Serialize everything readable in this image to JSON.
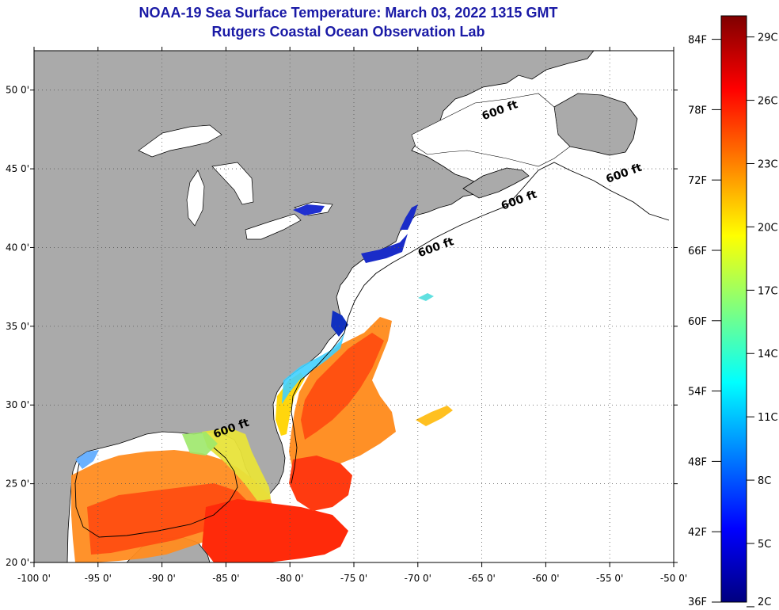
{
  "title": "NOAA-19 Sea Surface Temperature:  March 03, 2022 1315 GMT",
  "subtitle": "Rutgers Coastal Ocean Observation Lab",
  "map": {
    "lon_range": [
      -100,
      -50
    ],
    "lat_range": [
      20,
      52.5
    ],
    "x_ticks": [
      "-100 0'",
      "-95 0'",
      "-90 0'",
      "-85 0'",
      "-80 0'",
      "-75 0'",
      "-70 0'",
      "-65 0'",
      "-60 0'",
      "-55 0'",
      "-50 0'"
    ],
    "x_tick_values": [
      -100,
      -95,
      -90,
      -85,
      -80,
      -75,
      -70,
      -65,
      -60,
      -55,
      -50
    ],
    "y_ticks": [
      "20 0'",
      "25 0'",
      "30 0'",
      "35 0'",
      "40 0'",
      "45 0'",
      "50 0'"
    ],
    "y_tick_values": [
      20,
      25,
      30,
      35,
      40,
      45,
      50
    ],
    "grid": true,
    "land_color": "#aaaaaa",
    "no_data_color": "#ffffff",
    "depth_labels": [
      {
        "text": "600 ft",
        "lon": -63.5,
        "lat": 48.5
      },
      {
        "text": "600 ft",
        "lon": -53.8,
        "lat": 44.5
      },
      {
        "text": "600 ft",
        "lon": -62.0,
        "lat": 42.8
      },
      {
        "text": "600 ft",
        "lon": -68.5,
        "lat": 39.8
      },
      {
        "text": "600 ft",
        "lon": -84.5,
        "lat": 28.3
      }
    ]
  },
  "colorbar": {
    "min_f": 36,
    "max_f": 86,
    "f_labels": [
      "84F",
      "78F",
      "72F",
      "66F",
      "60F",
      "54F",
      "48F",
      "42F",
      "36F"
    ],
    "c_labels": [
      "29C",
      "26C",
      "23C",
      "20C",
      "17C",
      "14C",
      "11C",
      "8C",
      "5C",
      "2C"
    ],
    "colors": [
      "#00007f",
      "#0000ff",
      "#007fff",
      "#00ffff",
      "#7fff7f",
      "#ffff00",
      "#ff7f00",
      "#ff0000",
      "#7f0000"
    ]
  }
}
